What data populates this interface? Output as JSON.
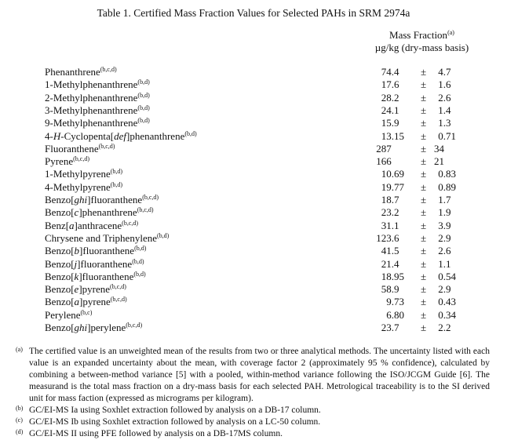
{
  "title": "Table 1.  Certified Mass Fraction Values for Selected PAHs in SRM 2974a",
  "header": {
    "line1": "Mass Fraction",
    "line1_sup": "(a)",
    "line2": "µg/kg (dry-mass basis)"
  },
  "rows": [
    {
      "name": [
        "Phenanthrene"
      ],
      "sup": "(b,c,d)",
      "value": "74.4",
      "uncertainty": "4.7"
    },
    {
      "name": [
        "1-Methylphenanthrene"
      ],
      "sup": "(b,d)",
      "value": "17.6",
      "uncertainty": "1.6"
    },
    {
      "name": [
        "2-Methylphenanthrene"
      ],
      "sup": "(b,d)",
      "value": "28.2",
      "uncertainty": "2.6"
    },
    {
      "name": [
        "3-Methylphenanthrene"
      ],
      "sup": "(b,d)",
      "value": "24.1",
      "uncertainty": "1.4"
    },
    {
      "name": [
        "9-Methylphenanthrene"
      ],
      "sup": "(b,d)",
      "value": "15.9",
      "uncertainty": "1.3"
    },
    {
      "name": [
        "4-",
        "H",
        "-Cyclopenta[",
        "def",
        "]phenanthrene"
      ],
      "sup": "(b,d)",
      "value": "13.15",
      "uncertainty": "0.71"
    },
    {
      "name": [
        "Fluoranthene"
      ],
      "sup": "(b,c,d)",
      "value": "287",
      "uncertainty": "34"
    },
    {
      "name": [
        "Pyrene"
      ],
      "sup": "(b,c,d)",
      "value": "166",
      "uncertainty": "21"
    },
    {
      "name": [
        "1-Methylpyrene"
      ],
      "sup": "(b,d)",
      "value": "10.69",
      "uncertainty": "0.83"
    },
    {
      "name": [
        "4-Methylpyrene"
      ],
      "sup": "(b,d)",
      "value": "19.77",
      "uncertainty": "0.89"
    },
    {
      "name": [
        "Benzo[",
        "ghi",
        "]fluoranthene"
      ],
      "sup": "(b,c,d)",
      "value": "18.7",
      "uncertainty": "1.7"
    },
    {
      "name": [
        "Benzo[",
        "c",
        "]phenanthrene"
      ],
      "sup": "(b,c,d)",
      "value": "23.2",
      "uncertainty": "1.9"
    },
    {
      "name": [
        "Benz[",
        "a",
        "]anthracene"
      ],
      "sup": "(b,c,d)",
      "value": "31.1",
      "uncertainty": "3.9"
    },
    {
      "name": [
        "Chrysene and Triphenylene"
      ],
      "sup": "(b,d)",
      "value": "123.6",
      "uncertainty": "2.9"
    },
    {
      "name": [
        "Benzo[",
        "b",
        "]fluoranthene"
      ],
      "sup": "(b,d)",
      "value": "41.5",
      "uncertainty": "2.6"
    },
    {
      "name": [
        "Benzo[",
        "j",
        "]fluoranthene"
      ],
      "sup": "(b,d)",
      "value": "21.4",
      "uncertainty": "1.1"
    },
    {
      "name": [
        "Benzo[",
        "k",
        "]fluoranthene"
      ],
      "sup": "(b,d)",
      "value": "18.95",
      "uncertainty": "0.54"
    },
    {
      "name": [
        "Benzo[",
        "e",
        "]pyrene"
      ],
      "sup": "(b,c,d)",
      "value": "58.9",
      "uncertainty": "2.9"
    },
    {
      "name": [
        "Benzo[",
        "a",
        "]pyrene"
      ],
      "sup": "(b,c,d)",
      "value": "9.73",
      "uncertainty": "0.43"
    },
    {
      "name": [
        "Perylene"
      ],
      "sup": "(b,c)",
      "value": "6.80",
      "uncertainty": "0.34"
    },
    {
      "name": [
        "Benzo[",
        "ghi",
        "]perylene"
      ],
      "sup": "(b,c,d)",
      "value": "23.7",
      "uncertainty": "2.2"
    }
  ],
  "plus_minus": "±",
  "footnotes": [
    {
      "mark": "(a)",
      "text": "The certified value is an unweighted mean of the results from two or three analytical methods.  The uncertainty listed with each value is an expanded uncertainty about the mean, with coverage factor 2 (approximately 95 % confidence), calculated by combining a between-method variance [5] with a pooled, within-method variance following the ISO/JCGM Guide [6].  The measurand is the total mass fraction on a dry-mass basis for each selected PAH.  Metrological traceability is to the SI derived unit for mass faction (expressed as micrograms per kilogram)."
    },
    {
      "mark": "(b)",
      "text": "GC/EI-MS Ia using Soxhlet extraction followed by analysis on a DB-17 column."
    },
    {
      "mark": "(c)",
      "text": "GC/EI-MS Ib using Soxhlet extraction followed by analysis on a LC-50 column."
    },
    {
      "mark": "(d)",
      "text": "GC/EI-MS II using PFE followed by analysis on a DB-17MS column."
    }
  ]
}
